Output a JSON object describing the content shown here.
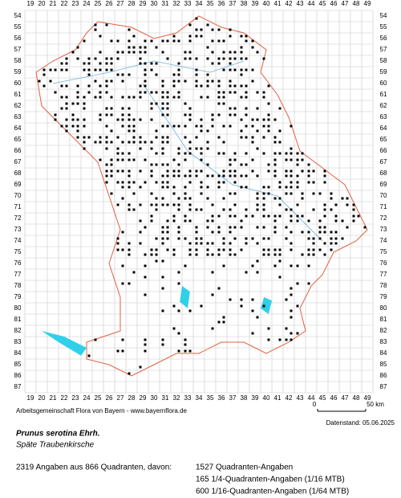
{
  "grid": {
    "columns": [
      19,
      20,
      21,
      22,
      23,
      24,
      25,
      26,
      27,
      28,
      29,
      30,
      31,
      32,
      33,
      34,
      35,
      36,
      37,
      38,
      39,
      40,
      41,
      42,
      43,
      44,
      45,
      46,
      47,
      48,
      49
    ],
    "rows": [
      54,
      55,
      56,
      57,
      58,
      59,
      60,
      61,
      62,
      63,
      64,
      65,
      66,
      67,
      68,
      69,
      70,
      71,
      72,
      73,
      74,
      75,
      76,
      77,
      78,
      79,
      80,
      81,
      82,
      83,
      84,
      85,
      86,
      87
    ]
  },
  "footer": {
    "credit": "Arbeitsgemeinschaft Flora von Bayern - www.bayernflora.de",
    "scale_start": "0",
    "scale_end": "50 km",
    "date": "Datenstand: 05.06.2025"
  },
  "species": {
    "name": "Prunus serotina Ehrh.",
    "common_name": "Späte Traubenkirsche"
  },
  "stats": {
    "summary": "2319 Angaben aus 866 Quadranten, davon:",
    "lines": [
      "1527 Quadranten-Angaben",
      "165 1/4-Quadranten-Angaben (1/16 MTB)",
      "600 1/16-Quadranten-Angaben (1/64 MTB)"
    ]
  }
}
